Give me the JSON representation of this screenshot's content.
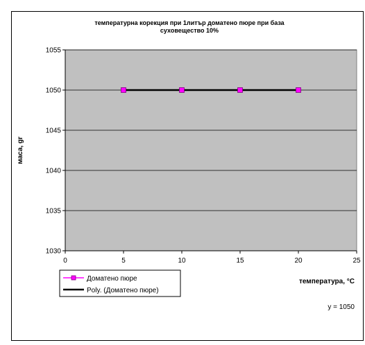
{
  "chart_data": {
    "type": "scatter",
    "title_lines": [
      "температурна корекция при 1литър доматено пюре при база",
      "суховещество 10%"
    ],
    "xlabel": "температура, °C",
    "ylabel": "маса, gr",
    "xlim": [
      0,
      25
    ],
    "ylim": [
      1030,
      1055
    ],
    "xticks": [
      0,
      5,
      10,
      15,
      20,
      25
    ],
    "yticks": [
      1030,
      1035,
      1040,
      1045,
      1050,
      1055
    ],
    "grid": "horizontal",
    "plot_background": "#C0C0C0",
    "series": [
      {
        "name": "Доматено пюре",
        "x": [
          5,
          10,
          15,
          20
        ],
        "y": [
          1050,
          1050,
          1050,
          1050
        ],
        "color": "#FF00FF",
        "marker": "square"
      }
    ],
    "trendline": {
      "name": "Poly. (Доматено пюре)",
      "x": [
        5,
        20
      ],
      "y": [
        1050,
        1050
      ],
      "color": "#000000",
      "equation": "y = 1050"
    },
    "legend": "bottom-left"
  }
}
